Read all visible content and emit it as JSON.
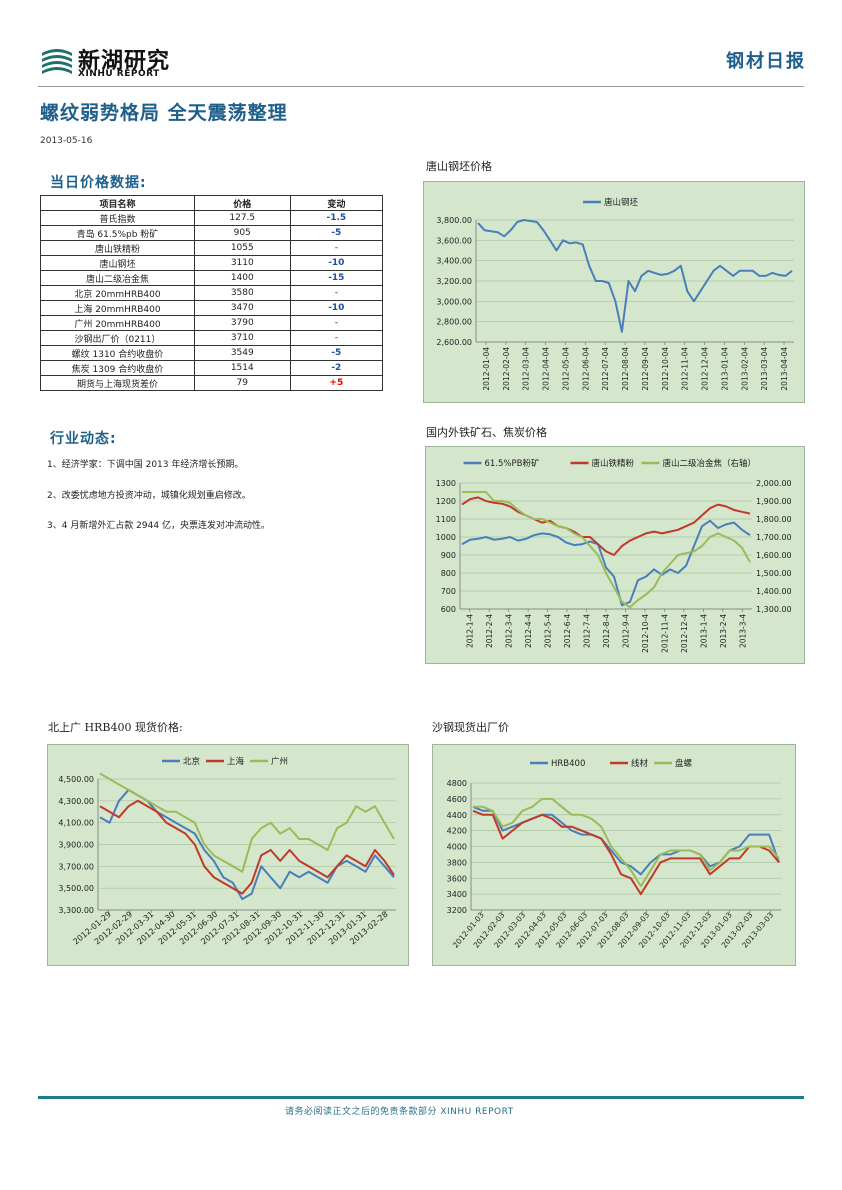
{
  "header": {
    "logo_cn": "新湖研究",
    "logo_en": "XINHU REPORT",
    "report_type": "钢材日报"
  },
  "title": "螺纹弱势格局 全天震荡整理",
  "date": "2013-05-16",
  "price_section": {
    "title": "当日价格数据:",
    "columns": [
      "项目名称",
      "价格",
      "变动"
    ],
    "rows": [
      {
        "name": "普氏指数",
        "price": "127.5",
        "change": "-1.5",
        "dir": "neg"
      },
      {
        "name": "青岛 61.5%pb 粉矿",
        "price": "905",
        "change": "-5",
        "dir": "neg"
      },
      {
        "name": "唐山铁精粉",
        "price": "1055",
        "change": "-",
        "dir": "none"
      },
      {
        "name": "唐山钢坯",
        "price": "3110",
        "change": "-10",
        "dir": "neg"
      },
      {
        "name": "唐山二级冶金焦",
        "price": "1400",
        "change": "-15",
        "dir": "neg"
      },
      {
        "name": "北京 20mmHRB400",
        "price": "3580",
        "change": "-",
        "dir": "none"
      },
      {
        "name": "上海 20mmHRB400",
        "price": "3470",
        "change": "-10",
        "dir": "neg"
      },
      {
        "name": "广州 20mmHRB400",
        "price": "3790",
        "change": "-",
        "dir": "none"
      },
      {
        "name": "沙钢出厂价（0211）",
        "price": "3710",
        "change": "-",
        "dir": "none"
      },
      {
        "name": "螺纹 1310 合约收盘价",
        "price": "3549",
        "change": "-5",
        "dir": "neg"
      },
      {
        "name": "焦炭 1309 合约收盘价",
        "price": "1514",
        "change": "-2",
        "dir": "neg"
      },
      {
        "name": "期货与上海现货差价",
        "price": "79",
        "change": "+5",
        "dir": "pos"
      }
    ]
  },
  "news_section": {
    "title": "行业动态:",
    "items": [
      "1、经济学家：下调中国 2013 年经济增长预期。",
      "2、改委忧虑地方投资冲动，城镇化规划重启修改。",
      "3、4 月新增外汇占款 2944 亿，央票连发对冲流动性。"
    ]
  },
  "footer": {
    "text": "请务必阅读正文之后的免责条款部分 XINHU REPORT"
  },
  "colors": {
    "blue": "#4a7ebb",
    "red": "#c0392b",
    "green": "#9bbb59",
    "bg": "#d4e7cc"
  },
  "chart_data": [
    {
      "id": "c1",
      "caption": "唐山钢坯价格",
      "type": "line",
      "title": "",
      "legend_position": "top",
      "grid": true,
      "x_ticks": [
        "2012-01-04",
        "2012-02-04",
        "2012-03-04",
        "2012-04-04",
        "2012-05-04",
        "2012-06-04",
        "2012-07-04",
        "2012-08-04",
        "2012-09-04",
        "2012-10-04",
        "2012-11-04",
        "2012-12-04",
        "2013-01-04",
        "2013-02-04",
        "2013-03-04",
        "2013-04-04"
      ],
      "ylim": [
        2600,
        3800
      ],
      "y_ticks": [
        "2,600.00",
        "2,800.00",
        "3,000.00",
        "3,200.00",
        "3,400.00",
        "3,600.00",
        "3,800.00"
      ],
      "y_tick_values": [
        2600,
        2800,
        3000,
        3200,
        3400,
        3600,
        3800
      ],
      "series": [
        {
          "name": "唐山钢坯",
          "color": "#4a7ebb",
          "axis": "left",
          "values": [
            3770,
            3700,
            3690,
            3680,
            3640,
            3700,
            3780,
            3800,
            3790,
            3780,
            3700,
            3600,
            3500,
            3600,
            3570,
            3580,
            3560,
            3350,
            3200,
            3200,
            3180,
            3000,
            2700,
            3200,
            3100,
            3250,
            3300,
            3280,
            3260,
            3270,
            3300,
            3350,
            3100,
            3000,
            3100,
            3200,
            3300,
            3350,
            3300,
            3250,
            3300,
            3300,
            3300,
            3250,
            3250,
            3280,
            3260,
            3250,
            3300
          ]
        }
      ]
    },
    {
      "id": "c2",
      "caption": "国内外铁矿石、焦炭价格",
      "type": "line",
      "title": "",
      "legend_position": "top",
      "grid": true,
      "x_ticks": [
        "2012-1-4",
        "2012-2-4",
        "2012-3-4",
        "2012-4-4",
        "2012-5-4",
        "2012-6-4",
        "2012-7-4",
        "2012-8-4",
        "2012-9-4",
        "2012-10-4",
        "2012-11-4",
        "2012-12-4",
        "2013-1-4",
        "2013-2-4",
        "2013-3-4"
      ],
      "ylim": [
        600,
        1300
      ],
      "y2lim": [
        1300,
        2000
      ],
      "y_ticks": [
        "600",
        "700",
        "800",
        "900",
        "1000",
        "1100",
        "1200",
        "1300"
      ],
      "y_tick_values": [
        600,
        700,
        800,
        900,
        1000,
        1100,
        1200,
        1300
      ],
      "y2_ticks": [
        "1,300.00",
        "1,400.00",
        "1,500.00",
        "1,600.00",
        "1,700.00",
        "1,800.00",
        "1,900.00",
        "2,000.00"
      ],
      "y2_tick_values": [
        1300,
        1400,
        1500,
        1600,
        1700,
        1800,
        1900,
        2000
      ],
      "series": [
        {
          "name": "61.5%PB粉矿",
          "color": "#4a7ebb",
          "axis": "left",
          "values": [
            960,
            985,
            990,
            1000,
            985,
            990,
            1000,
            980,
            990,
            1010,
            1020,
            1015,
            1000,
            970,
            955,
            960,
            975,
            960,
            830,
            780,
            620,
            640,
            760,
            780,
            820,
            790,
            820,
            800,
            840,
            950,
            1060,
            1090,
            1050,
            1070,
            1080,
            1040,
            1010
          ]
        },
        {
          "name": "唐山铁精粉",
          "color": "#c0392b",
          "axis": "left",
          "values": [
            1180,
            1210,
            1220,
            1200,
            1190,
            1185,
            1170,
            1140,
            1120,
            1100,
            1080,
            1090,
            1060,
            1050,
            1030,
            1000,
            1000,
            960,
            920,
            900,
            950,
            980,
            1000,
            1020,
            1030,
            1020,
            1030,
            1040,
            1060,
            1080,
            1120,
            1160,
            1180,
            1170,
            1150,
            1140,
            1130
          ]
        },
        {
          "name": "唐山二级冶金焦（右轴）",
          "color": "#9bbb59",
          "axis": "right",
          "values": [
            1950,
            1950,
            1950,
            1950,
            1900,
            1900,
            1890,
            1850,
            1820,
            1800,
            1800,
            1780,
            1760,
            1750,
            1720,
            1700,
            1650,
            1600,
            1500,
            1420,
            1340,
            1310,
            1350,
            1380,
            1420,
            1500,
            1550,
            1600,
            1610,
            1620,
            1650,
            1700,
            1720,
            1700,
            1680,
            1640,
            1560
          ]
        }
      ]
    },
    {
      "id": "c3",
      "caption": "北上广 HRB400 现货价格:",
      "type": "line",
      "title": "",
      "legend_position": "top",
      "grid": true,
      "x_ticks": [
        "2012-01-29",
        "2012-02-29",
        "2012-03-31",
        "2012-04-30",
        "2012-05-31",
        "2012-06-30",
        "2012-07-31",
        "2012-08-31",
        "2012-09-30",
        "2012-10-31",
        "2012-11-30",
        "2012-12-31",
        "2013-01-31",
        "2013-02-28"
      ],
      "ylim": [
        3300,
        4500
      ],
      "y_ticks": [
        "3,300.00",
        "3,500.00",
        "3,700.00",
        "3,900.00",
        "4,100.00",
        "4,300.00",
        "4,500.00"
      ],
      "y_tick_values": [
        3300,
        3500,
        3700,
        3900,
        4100,
        4300,
        4500
      ],
      "series": [
        {
          "name": "北京",
          "color": "#4a7ebb",
          "axis": "left",
          "values": [
            4150,
            4100,
            4300,
            4400,
            4350,
            4300,
            4200,
            4150,
            4100,
            4050,
            4000,
            3850,
            3750,
            3600,
            3550,
            3400,
            3450,
            3700,
            3600,
            3500,
            3650,
            3600,
            3650,
            3600,
            3550,
            3700,
            3750,
            3700,
            3650,
            3800,
            3700,
            3600
          ]
        },
        {
          "name": "上海",
          "color": "#c0392b",
          "axis": "left",
          "values": [
            4250,
            4200,
            4150,
            4250,
            4300,
            4250,
            4200,
            4100,
            4050,
            4000,
            3900,
            3700,
            3600,
            3550,
            3500,
            3450,
            3550,
            3800,
            3850,
            3750,
            3850,
            3750,
            3700,
            3650,
            3600,
            3700,
            3800,
            3750,
            3700,
            3850,
            3750,
            3620
          ]
        },
        {
          "name": "广州",
          "color": "#9bbb59",
          "axis": "left",
          "values": [
            4550,
            4500,
            4450,
            4400,
            4350,
            4300,
            4250,
            4200,
            4200,
            4150,
            4100,
            3900,
            3800,
            3750,
            3700,
            3650,
            3950,
            4050,
            4100,
            4000,
            4050,
            3950,
            3950,
            3900,
            3850,
            4050,
            4100,
            4250,
            4200,
            4250,
            4100,
            3950
          ]
        }
      ]
    },
    {
      "id": "c4",
      "caption": "沙钢现货出厂价",
      "type": "line",
      "title": "",
      "legend_position": "top",
      "grid": true,
      "x_ticks": [
        "2012-01-03",
        "2012-02-03",
        "2012-03-03",
        "2012-04-03",
        "2012-05-03",
        "2012-06-03",
        "2012-07-03",
        "2012-08-03",
        "2012-09-03",
        "2012-10-03",
        "2012-11-03",
        "2012-12-03",
        "2013-01-03",
        "2013-02-03",
        "2013-03-03"
      ],
      "ylim": [
        3200,
        4800
      ],
      "y_ticks": [
        "3200",
        "3400",
        "3600",
        "3800",
        "4000",
        "4200",
        "4400",
        "4600",
        "4800"
      ],
      "y_tick_values": [
        3200,
        3400,
        3600,
        3800,
        4000,
        4200,
        4400,
        4600,
        4800
      ],
      "series": [
        {
          "name": "HRB400",
          "color": "#4a7ebb",
          "axis": "left",
          "values": [
            4500,
            4450,
            4450,
            4200,
            4250,
            4300,
            4350,
            4400,
            4400,
            4300,
            4200,
            4150,
            4150,
            4100,
            3950,
            3800,
            3750,
            3650,
            3800,
            3900,
            3900,
            3950,
            3950,
            3900,
            3750,
            3800,
            3950,
            4000,
            4150,
            4150,
            4150,
            3800
          ]
        },
        {
          "name": "线材",
          "color": "#c0392b",
          "axis": "left",
          "values": [
            4450,
            4400,
            4400,
            4100,
            4200,
            4300,
            4350,
            4400,
            4350,
            4250,
            4250,
            4200,
            4150,
            4100,
            3900,
            3650,
            3600,
            3400,
            3600,
            3800,
            3850,
            3850,
            3850,
            3850,
            3650,
            3750,
            3850,
            3850,
            4000,
            4000,
            3950,
            3800
          ]
        },
        {
          "name": "盘螺",
          "color": "#9bbb59",
          "axis": "left",
          "values": [
            4500,
            4500,
            4450,
            4250,
            4300,
            4450,
            4500,
            4600,
            4600,
            4500,
            4400,
            4400,
            4350,
            4250,
            4000,
            3850,
            3700,
            3500,
            3700,
            3900,
            3950,
            3950,
            3950,
            3900,
            3700,
            3800,
            3950,
            3950,
            4000,
            4000,
            4000,
            3850
          ]
        }
      ]
    }
  ]
}
